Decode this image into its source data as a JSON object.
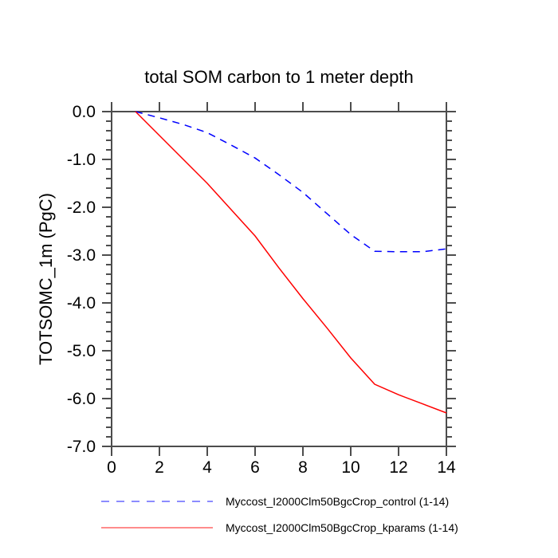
{
  "chart_data": {
    "type": "line",
    "title": "total SOM carbon to 1 meter depth",
    "xlabel": "",
    "ylabel": "TOTSOMC_1m (PgC)",
    "xlim": [
      0,
      14
    ],
    "ylim": [
      -7.0,
      0.0
    ],
    "grid": false,
    "legend_position": "below-plot",
    "x_ticks": [
      0,
      2,
      4,
      6,
      8,
      10,
      12,
      14
    ],
    "x_tick_labels": [
      "0",
      "2",
      "4",
      "6",
      "8",
      "10",
      "12",
      "14"
    ],
    "y_ticks": [
      0.0,
      -1.0,
      -2.0,
      -3.0,
      -4.0,
      -5.0,
      -6.0,
      -7.0
    ],
    "y_tick_labels": [
      "0.0",
      "-1.0",
      "-2.0",
      "-3.0",
      "-4.0",
      "-5.0",
      "-6.0",
      "-7.0"
    ],
    "y_minor_step": 0.2,
    "x": [
      1,
      2,
      3,
      4,
      5,
      6,
      7,
      8,
      9,
      10,
      11,
      12,
      13,
      14
    ],
    "series": [
      {
        "name": "Myccost_I2000Clm50BgcCrop_control (1-14)",
        "color": "#0000ff",
        "line_style": "dashed",
        "values": [
          0.0,
          -0.13,
          -0.27,
          -0.44,
          -0.7,
          -0.97,
          -1.32,
          -1.69,
          -2.13,
          -2.57,
          -2.92,
          -2.93,
          -2.93,
          -2.87
        ]
      },
      {
        "name": "Myccost_I2000Clm50BgcCrop_kparams (1-14)",
        "color": "#ff0000",
        "line_style": "solid",
        "values": [
          0.0,
          -0.5,
          -1.0,
          -1.5,
          -2.05,
          -2.6,
          -3.27,
          -3.91,
          -4.52,
          -5.15,
          -5.7,
          -5.92,
          -6.11,
          -6.3
        ]
      }
    ],
    "axis_color": "#4d4d4d",
    "text_color": "#000000"
  }
}
